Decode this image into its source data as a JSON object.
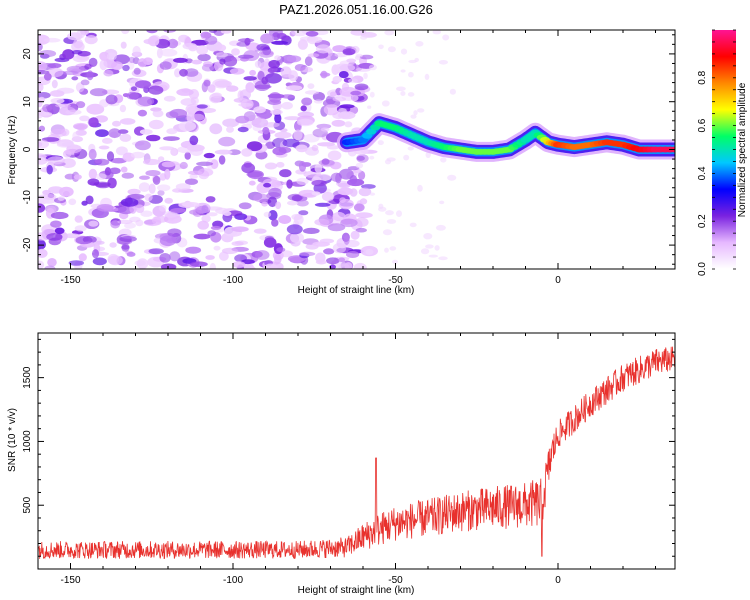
{
  "title": "PAZ1.2026.051.16.00.G26",
  "colors": {
    "snr_line": "#e8312d",
    "spectrogram_noise": "#7a22e0",
    "axis": "#000000"
  },
  "chart_data": [
    {
      "type": "heatmap",
      "name": "spectrogram",
      "xlabel": "Height of straight line (km)",
      "ylabel": "Frequency (Hz)",
      "xlim": [
        -160,
        36
      ],
      "ylim": [
        -25,
        25
      ],
      "xticks": [
        -150,
        -100,
        -50,
        0
      ],
      "xtick_labels": [
        "-150",
        "-100",
        "-50",
        "0"
      ],
      "yticks": [
        -20,
        -10,
        0,
        10,
        20
      ],
      "ytick_labels": [
        "-20",
        "-10",
        "0",
        "10",
        "20"
      ],
      "colorbar": {
        "label": "Normalized spectral amplitude",
        "range": [
          0,
          1
        ],
        "ticks": [
          0.0,
          0.2,
          0.4,
          0.6,
          0.8
        ],
        "tick_labels": [
          "0.0",
          "0.2",
          "0.4",
          "0.6",
          "0.8"
        ],
        "colormap": [
          "#ffffff",
          "#e6b8ff",
          "#7a22e0",
          "#0000ff",
          "#00c8ff",
          "#00ff66",
          "#ffff00",
          "#ff8800",
          "#ff0000",
          "#ff1493"
        ]
      },
      "noise_region_x": [
        -160,
        -62
      ],
      "signal_trace": [
        {
          "x": -65,
          "f": 1.5,
          "amp": 0.35
        },
        {
          "x": -60,
          "f": 2.0,
          "amp": 0.4
        },
        {
          "x": -55,
          "f": 5.5,
          "amp": 0.55
        },
        {
          "x": -50,
          "f": 4.5,
          "amp": 0.55
        },
        {
          "x": -45,
          "f": 3.0,
          "amp": 0.5
        },
        {
          "x": -40,
          "f": 1.5,
          "amp": 0.5
        },
        {
          "x": -35,
          "f": 0.5,
          "amp": 0.55
        },
        {
          "x": -30,
          "f": 0.0,
          "amp": 0.6
        },
        {
          "x": -25,
          "f": -0.5,
          "amp": 0.6
        },
        {
          "x": -20,
          "f": -0.5,
          "amp": 0.6
        },
        {
          "x": -15,
          "f": 0.0,
          "amp": 0.6
        },
        {
          "x": -10,
          "f": 2.0,
          "amp": 0.5
        },
        {
          "x": -7,
          "f": 3.5,
          "amp": 0.5
        },
        {
          "x": -3,
          "f": 1.5,
          "amp": 0.7
        },
        {
          "x": 0,
          "f": 1.0,
          "amp": 0.85
        },
        {
          "x": 5,
          "f": 0.5,
          "amp": 0.8
        },
        {
          "x": 10,
          "f": 1.0,
          "amp": 0.8
        },
        {
          "x": 15,
          "f": 1.5,
          "amp": 0.85
        },
        {
          "x": 20,
          "f": 1.0,
          "amp": 0.85
        },
        {
          "x": 25,
          "f": 0.0,
          "amp": 0.9
        },
        {
          "x": 30,
          "f": 0.0,
          "amp": 0.95
        },
        {
          "x": 36,
          "f": 0.0,
          "amp": 0.95
        }
      ]
    },
    {
      "type": "line",
      "name": "snr",
      "xlabel": "Height of straight line (km)",
      "ylabel": "SNR (10 * v/v)",
      "xlim": [
        -160,
        36
      ],
      "ylim": [
        0,
        1850
      ],
      "xticks": [
        -150,
        -100,
        -50,
        0
      ],
      "xtick_labels": [
        "-150",
        "-100",
        "-50",
        "0"
      ],
      "yticks": [
        500,
        1000,
        1500
      ],
      "ytick_labels": [
        "500",
        "1000",
        "1500"
      ],
      "envelope_x": [
        -160,
        -140,
        -120,
        -100,
        -80,
        -65,
        -60,
        -56,
        -50,
        -40,
        -30,
        -20,
        -10,
        -5,
        -2,
        0,
        10,
        20,
        30,
        36
      ],
      "envelope_mean": [
        150,
        150,
        150,
        150,
        150,
        170,
        250,
        300,
        360,
        400,
        450,
        480,
        500,
        520,
        900,
        1050,
        1300,
        1500,
        1620,
        1650
      ],
      "envelope_spread": [
        70,
        70,
        70,
        70,
        70,
        80,
        110,
        130,
        140,
        150,
        160,
        170,
        180,
        200,
        150,
        110,
        110,
        110,
        110,
        100
      ],
      "spikes": [
        {
          "x": -56,
          "y": 870
        },
        {
          "x": -5,
          "y": 100
        }
      ]
    }
  ]
}
